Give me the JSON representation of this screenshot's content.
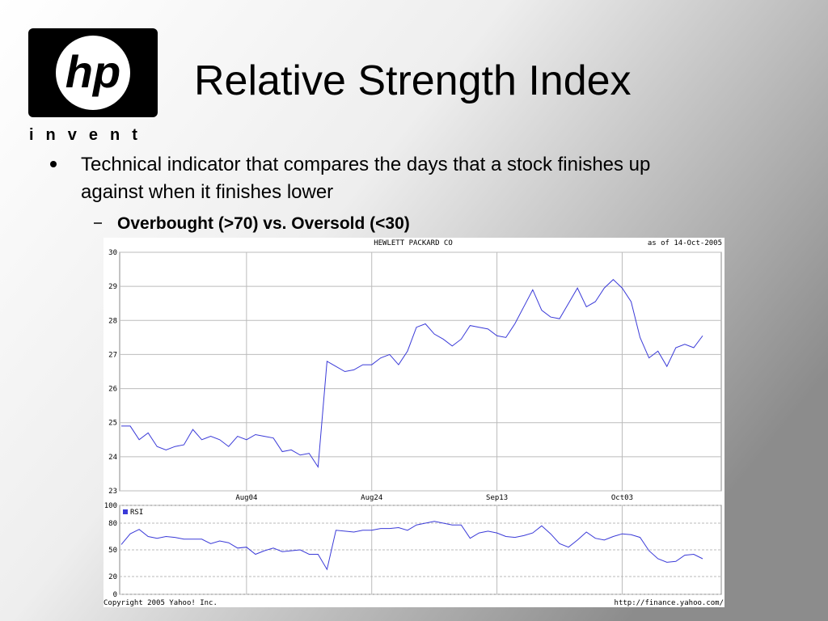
{
  "header": {
    "logo": "hp",
    "logo_tagline": "invent",
    "title": "Relative Strength Index"
  },
  "bullets": [
    "Technical indicator that compares the days that a stock finishes up",
    "against when it finishes lower"
  ],
  "sub_bullets": [
    "Overbought (>70) vs. Oversold (<30)"
  ],
  "chart_footer": {
    "left": "Copyright 2005 Yahoo! Inc.",
    "right": "http://finance.yahoo.com/"
  },
  "chart_data": [
    {
      "type": "line",
      "title": "HEWLETT PACKARD CO",
      "subtitle": "as of 14-Oct-2005",
      "color": "#3a3ad8",
      "categories": [
        null,
        null,
        null,
        null,
        null,
        null,
        null,
        null,
        null,
        null,
        null,
        null,
        null,
        null,
        "Aug04",
        null,
        null,
        null,
        null,
        null,
        null,
        null,
        null,
        null,
        null,
        null,
        null,
        null,
        "Aug24",
        null,
        null,
        null,
        null,
        null,
        null,
        null,
        null,
        null,
        null,
        null,
        null,
        null,
        "Sep13",
        null,
        null,
        null,
        null,
        null,
        null,
        null,
        null,
        null,
        null,
        null,
        null,
        null,
        "Oct03",
        null,
        null,
        null,
        null,
        null,
        null,
        null,
        null,
        null
      ],
      "values": [
        24.9,
        24.9,
        24.5,
        24.7,
        24.3,
        24.2,
        24.3,
        24.35,
        24.8,
        24.5,
        24.6,
        24.5,
        24.3,
        24.6,
        24.5,
        24.65,
        24.6,
        24.55,
        24.15,
        24.2,
        24.05,
        24.1,
        23.7,
        26.8,
        26.65,
        26.5,
        26.55,
        26.7,
        26.7,
        26.9,
        27.0,
        26.7,
        27.1,
        27.8,
        27.9,
        27.6,
        27.45,
        27.25,
        27.45,
        27.85,
        27.8,
        27.75,
        27.55,
        27.5,
        27.9,
        28.4,
        28.9,
        28.3,
        28.1,
        28.05,
        28.5,
        28.95,
        28.4,
        28.55,
        28.95,
        29.2,
        28.95,
        28.55,
        27.5,
        26.9,
        27.1,
        26.65,
        27.2,
        27.3,
        27.2,
        27.55
      ],
      "ylim": [
        23,
        30
      ],
      "yticks": [
        23,
        24,
        25,
        26,
        27,
        28,
        29,
        30
      ],
      "grid": true
    },
    {
      "type": "line",
      "legend": "top-left",
      "ylim": [
        0,
        100
      ],
      "yticks": [
        0,
        20,
        50,
        80,
        100
      ],
      "grid": true,
      "series": [
        {
          "name": "RSI",
          "color": "#3a3ad8",
          "values": [
            56,
            68,
            73,
            65,
            63,
            65,
            64,
            62,
            62,
            62,
            57,
            60,
            58,
            52,
            53,
            45,
            49,
            52,
            48,
            49,
            50,
            45,
            45,
            28,
            72,
            71,
            70,
            72,
            72,
            74,
            74,
            75,
            72,
            78,
            80,
            82,
            80,
            78,
            78,
            63,
            69,
            71,
            69,
            65,
            64,
            66,
            69,
            77,
            68,
            57,
            53,
            61,
            70,
            63,
            61,
            65,
            68,
            67,
            64,
            49,
            40,
            36,
            37,
            44,
            45,
            40
          ]
        }
      ]
    }
  ]
}
